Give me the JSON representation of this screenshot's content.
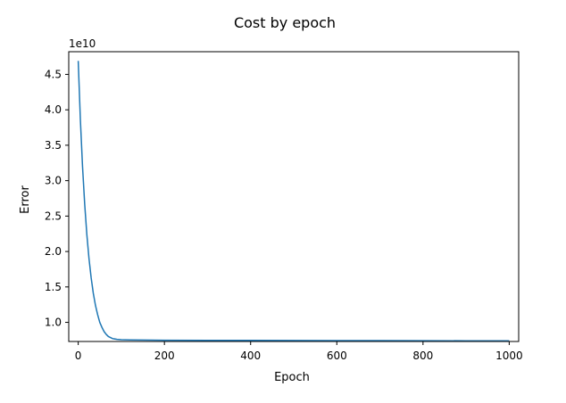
{
  "chart_data": {
    "type": "line",
    "title": "Cost by epoch",
    "xlabel": "Epoch",
    "ylabel": "Error",
    "y_offset_label": "1e10",
    "xlim": [
      -22,
      1022
    ],
    "ylim": [
      0.73,
      4.82
    ],
    "xticks": [
      0,
      200,
      400,
      600,
      800,
      1000
    ],
    "xtick_labels": [
      "0",
      "200",
      "400",
      "600",
      "800",
      "1000"
    ],
    "yticks": [
      1.0,
      1.5,
      2.0,
      2.5,
      3.0,
      3.5,
      4.0,
      4.5
    ],
    "ytick_labels": [
      "1.0",
      "1.5",
      "2.0",
      "2.5",
      "3.0",
      "3.5",
      "4.0",
      "4.5"
    ],
    "grid": false,
    "legend": "none",
    "series": [
      {
        "color": "#1f77b4",
        "x": [
          0,
          5,
          10,
          15,
          20,
          25,
          30,
          35,
          40,
          45,
          50,
          55,
          60,
          65,
          70,
          80,
          90,
          100,
          120,
          150,
          200,
          300,
          400,
          500,
          600,
          700,
          800,
          900,
          1000
        ],
        "y": [
          4.69,
          3.86,
          3.2,
          2.67,
          2.24,
          1.9,
          1.63,
          1.41,
          1.24,
          1.11,
          1.0,
          0.93,
          0.87,
          0.83,
          0.8,
          0.77,
          0.76,
          0.755,
          0.752,
          0.75,
          0.748,
          0.746,
          0.745,
          0.744,
          0.743,
          0.742,
          0.741,
          0.74,
          0.74
        ]
      }
    ]
  }
}
